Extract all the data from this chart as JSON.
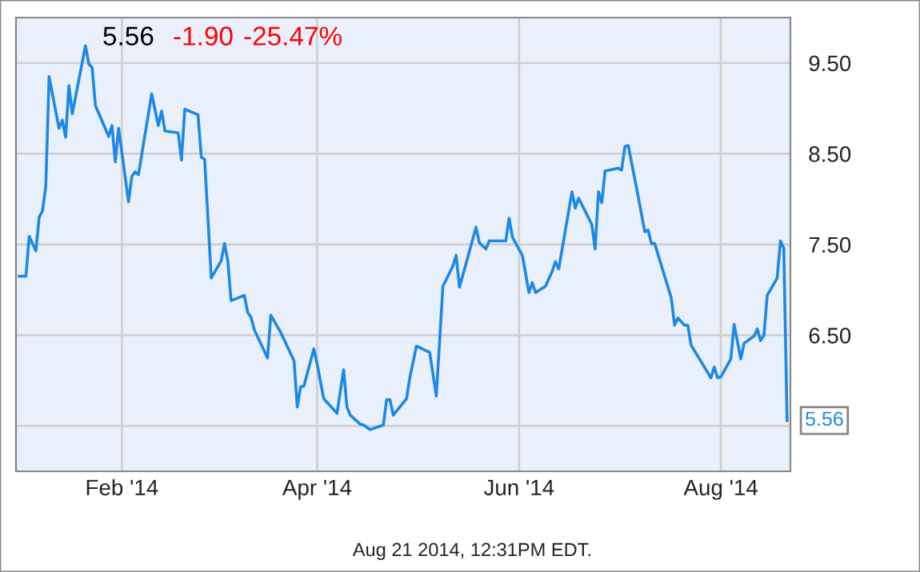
{
  "chart_data": {
    "type": "line",
    "title": "5.56",
    "annotations": [
      "-1.90",
      "-25.47%",
      "Aug 21 2014, 12:31PM EDT.",
      {
        "text": "5.56",
        "x": "2014-08-21",
        "y": 5.56
      }
    ],
    "x": [
      "2014-01-01",
      "2014-01-03",
      "2014-01-04",
      "2014-01-06",
      "2014-01-07",
      "2014-01-08",
      "2014-01-09",
      "2014-01-10",
      "2014-01-13",
      "2014-01-14",
      "2014-01-15",
      "2014-01-16",
      "2014-01-17",
      "2014-01-21",
      "2014-01-22",
      "2014-01-23",
      "2014-01-24",
      "2014-01-28",
      "2014-01-29",
      "2014-01-30",
      "2014-01-31",
      "2014-02-03",
      "2014-02-04",
      "2014-02-05",
      "2014-02-06",
      "2014-02-10",
      "2014-02-12",
      "2014-02-13",
      "2014-02-14",
      "2014-02-18",
      "2014-02-19",
      "2014-02-20",
      "2014-02-24",
      "2014-02-25",
      "2014-02-26",
      "2014-02-28",
      "2014-03-03",
      "2014-03-04",
      "2014-03-05",
      "2014-03-06",
      "2014-03-10",
      "2014-03-11",
      "2014-03-12",
      "2014-03-13",
      "2014-03-17",
      "2014-03-18",
      "2014-03-21",
      "2014-03-25",
      "2014-03-26",
      "2014-03-27",
      "2014-03-28",
      "2014-03-31",
      "2014-04-01",
      "2014-04-03",
      "2014-04-07",
      "2014-04-09",
      "2014-04-10",
      "2014-04-11",
      "2014-04-14",
      "2014-04-15",
      "2014-04-17",
      "2014-04-21",
      "2014-04-22",
      "2014-04-23",
      "2014-04-24",
      "2014-04-28",
      "2014-04-29",
      "2014-05-01",
      "2014-05-05",
      "2014-05-07",
      "2014-05-09",
      "2014-05-12",
      "2014-05-13",
      "2014-05-14",
      "2014-05-16",
      "2014-05-19",
      "2014-05-20",
      "2014-05-22",
      "2014-05-23",
      "2014-05-28",
      "2014-05-29",
      "2014-05-30",
      "2014-06-02",
      "2014-06-04",
      "2014-06-05",
      "2014-06-06",
      "2014-06-09",
      "2014-06-11",
      "2014-06-12",
      "2014-06-13",
      "2014-06-17",
      "2014-06-18",
      "2014-06-19",
      "2014-06-23",
      "2014-06-24",
      "2014-06-25",
      "2014-06-26",
      "2014-06-27",
      "2014-07-01",
      "2014-07-02",
      "2014-07-03",
      "2014-07-04",
      "2014-07-07",
      "2014-07-09",
      "2014-07-10",
      "2014-07-11",
      "2014-07-12",
      "2014-07-17",
      "2014-07-18",
      "2014-07-19",
      "2014-07-21",
      "2014-07-22",
      "2014-07-23",
      "2014-07-29",
      "2014-07-30",
      "2014-07-31",
      "2014-08-01",
      "2014-08-04",
      "2014-08-05",
      "2014-08-07",
      "2014-08-08",
      "2014-08-11",
      "2014-08-12",
      "2014-08-13",
      "2014-08-14",
      "2014-08-15",
      "2014-08-18",
      "2014-08-19",
      "2014-08-20",
      "2014-08-21"
    ],
    "series": [
      {
        "color": "#1e88e5",
        "values": [
          7.15,
          7.15,
          7.59,
          7.43,
          7.8,
          7.87,
          8.14,
          9.35,
          8.78,
          8.87,
          8.68,
          9.25,
          8.94,
          9.69,
          9.49,
          9.45,
          9.03,
          8.69,
          8.81,
          8.41,
          8.78,
          7.97,
          8.25,
          8.3,
          8.27,
          9.16,
          8.81,
          8.97,
          8.75,
          8.73,
          8.43,
          8.99,
          8.93,
          8.46,
          8.44,
          7.13,
          7.32,
          7.51,
          7.32,
          6.88,
          6.94,
          6.75,
          6.7,
          6.56,
          6.25,
          6.72,
          6.53,
          6.22,
          5.71,
          5.93,
          5.94,
          6.35,
          6.18,
          5.8,
          5.64,
          6.12,
          5.71,
          5.62,
          5.52,
          5.51,
          5.46,
          5.51,
          5.79,
          5.79,
          5.62,
          5.8,
          6.03,
          6.38,
          6.31,
          5.83,
          7.04,
          7.26,
          7.38,
          7.03,
          7.29,
          7.69,
          7.52,
          7.45,
          7.54,
          7.54,
          7.79,
          7.58,
          7.38,
          6.97,
          7.08,
          6.97,
          7.04,
          7.2,
          7.31,
          7.23,
          8.08,
          7.9,
          8.01,
          7.72,
          7.45,
          8.08,
          7.96,
          8.31,
          8.34,
          8.32,
          8.58,
          8.59,
          8.03,
          7.64,
          7.66,
          7.51,
          7.51,
          6.91,
          6.61,
          6.69,
          6.61,
          6.61,
          6.39,
          6.03,
          6.15,
          6.03,
          6.04,
          6.24,
          6.62,
          6.24,
          6.41,
          6.49,
          6.57,
          6.44,
          6.5,
          6.94,
          7.13,
          7.54,
          7.46,
          5.56
        ]
      }
    ],
    "xlim": [
      "2013-12-31",
      "2014-08-22"
    ],
    "xticks": [
      {
        "value": "2014-02-01",
        "label": "Feb '14"
      },
      {
        "value": "2014-04-01",
        "label": "Apr '14"
      },
      {
        "value": "2014-06-01",
        "label": "Jun '14"
      },
      {
        "value": "2014-08-01",
        "label": "Aug '14"
      }
    ],
    "ylim": [
      5.0,
      10.0
    ],
    "yticks": [
      {
        "value": 5.5,
        "label": null
      },
      {
        "value": 6.5,
        "label": "6.50"
      },
      {
        "value": 7.5,
        "label": "7.50"
      },
      {
        "value": 8.5,
        "label": "8.50"
      },
      {
        "value": 9.5,
        "label": "9.50"
      }
    ],
    "grid": true,
    "line_style": "solid",
    "marker": "none",
    "legend": false
  }
}
